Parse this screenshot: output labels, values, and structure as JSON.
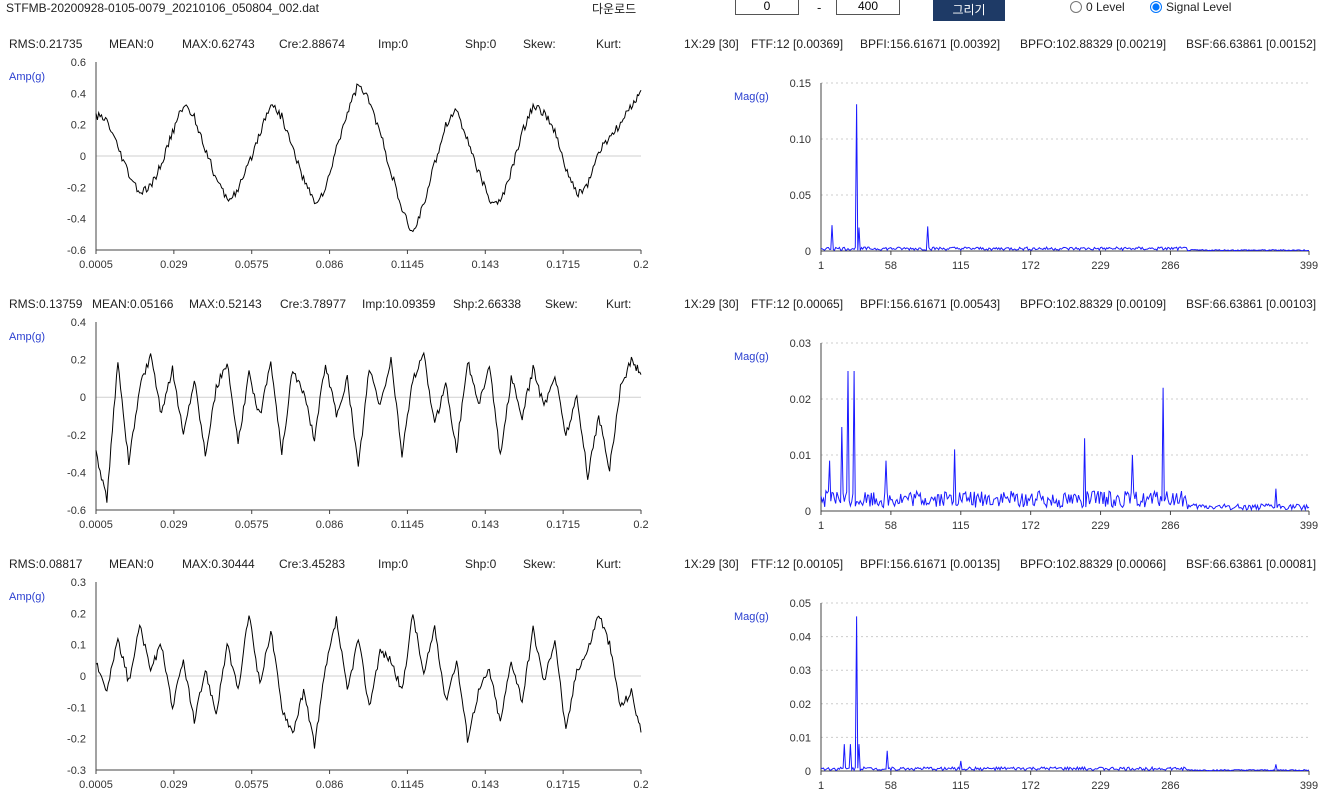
{
  "toolbar": {
    "filename": "STFMB-20200928-0105-0079_20210106_050804_002.dat",
    "download_label": "다운로드",
    "range_start": "0",
    "range_end": "400",
    "range_separator": "-",
    "draw_label": "그리기",
    "radio_zero_label": "0 Level",
    "radio_signal_label": "Signal Level",
    "selected_level": "signal"
  },
  "channels": [
    {
      "stats": {
        "rms": "RMS:0.21735",
        "mean": "MEAN:0",
        "max": "MAX:0.62743",
        "cre": "Cre:2.88674",
        "imp": "Imp:0",
        "shp": "Shp:0",
        "skew": "Skew:",
        "kurt": "Kurt:"
      },
      "freqs": {
        "x1": "1X:29 [30]",
        "ftf": "FTF:12 [0.00369]",
        "bpfi": "BPFI:156.61671 [0.00392]",
        "bpfo": "BPFO:102.88329 [0.00219]",
        "bsf": "BSF:66.63861 [0.00152]"
      }
    },
    {
      "stats": {
        "rms": "RMS:0.13759",
        "mean": "MEAN:0.05166",
        "max": "MAX:0.52143",
        "cre": "Cre:3.78977",
        "imp": "Imp:10.09359",
        "shp": "Shp:2.66338",
        "skew": "Skew:",
        "kurt": "Kurt:"
      },
      "freqs": {
        "x1": "1X:29 [30]",
        "ftf": "FTF:12 [0.00065]",
        "bpfi": "BPFI:156.61671 [0.00543]",
        "bpfo": "BPFO:102.88329 [0.00109]",
        "bsf": "BSF:66.63861 [0.00103]"
      }
    },
    {
      "stats": {
        "rms": "RMS:0.08817",
        "mean": "MEAN:0",
        "max": "MAX:0.30444",
        "cre": "Cre:3.45283",
        "imp": "Imp:0",
        "shp": "Shp:0",
        "skew": "Skew:",
        "kurt": "Kurt:"
      },
      "freqs": {
        "x1": "1X:29 [30]",
        "ftf": "FTF:12 [0.00105]",
        "bpfi": "BPFI:156.61671 [0.00135]",
        "bpfo": "BPFO:102.88329 [0.00066]",
        "bsf": "BSF:66.63861 [0.00081]"
      }
    }
  ],
  "chart_data": [
    {
      "type": "line",
      "kind": "waveform",
      "ylabel": "Amp(g)",
      "color": "#000000",
      "grid": "horizontal zero line",
      "xlim": [
        0.0005,
        0.2
      ],
      "ylim": [
        -0.6,
        0.6
      ],
      "xticks": [
        "0.0005",
        "0.029",
        "0.0575",
        "0.086",
        "0.1145",
        "0.143",
        "0.1715",
        "0.2"
      ],
      "yticks": [
        "0.6",
        "0.4",
        "0.2",
        "0",
        "-0.2",
        "-0.4",
        "-0.6"
      ],
      "series": [
        {
          "x": [
            0.0005,
            0.0045,
            0.0085,
            0.0125,
            0.0165,
            0.0205,
            0.0245,
            0.0285,
            0.0325,
            0.0365,
            0.0405,
            0.0445,
            0.0485,
            0.0525,
            0.0565,
            0.0605,
            0.0645,
            0.0685,
            0.0725,
            0.0765,
            0.0805,
            0.0845,
            0.0885,
            0.0925,
            0.0965,
            0.1005,
            0.1045,
            0.1085,
            0.1125,
            0.1165,
            0.1205,
            0.1245,
            0.1285,
            0.1325,
            0.1365,
            0.1405,
            0.1445,
            0.1485,
            0.1525,
            0.1565,
            0.1605,
            0.1645,
            0.1685,
            0.1725,
            0.1765,
            0.1805,
            0.1845,
            0.1885,
            0.1925,
            0.1965,
            0.2
          ],
          "y": [
            0.26,
            0.22,
            0.05,
            -0.12,
            -0.24,
            -0.2,
            -0.05,
            0.15,
            0.33,
            0.25,
            0.05,
            -0.15,
            -0.28,
            -0.22,
            -0.05,
            0.15,
            0.34,
            0.25,
            0.05,
            -0.15,
            -0.3,
            -0.22,
            0.05,
            0.28,
            0.46,
            0.35,
            0.15,
            -0.1,
            -0.35,
            -0.5,
            -0.3,
            -0.05,
            0.2,
            0.3,
            0.1,
            -0.1,
            -0.28,
            -0.3,
            -0.1,
            0.15,
            0.32,
            0.28,
            0.15,
            -0.08,
            -0.25,
            -0.18,
            0.02,
            0.12,
            0.2,
            0.32,
            0.42
          ]
        }
      ]
    },
    {
      "type": "line",
      "kind": "spectrum",
      "ylabel": "Mag(g)",
      "color": "#1a1aff",
      "grid": "horizontal dotted",
      "xlim": [
        1,
        399
      ],
      "ylim": [
        0,
        0.15
      ],
      "xticks": [
        "1",
        "58",
        "115",
        "172",
        "229",
        "286",
        "399"
      ],
      "yticks": [
        "0.15",
        "0.10",
        "0.05",
        "0"
      ],
      "peaks": [
        {
          "x": 30,
          "y": 0.131
        },
        {
          "x": 10,
          "y": 0.023
        },
        {
          "x": 32,
          "y": 0.021
        },
        {
          "x": 88,
          "y": 0.022
        }
      ],
      "noise_floor": 0.003
    },
    {
      "type": "line",
      "kind": "waveform",
      "ylabel": "Amp(g)",
      "color": "#000000",
      "grid": "horizontal zero line",
      "xlim": [
        0.0005,
        0.2
      ],
      "ylim": [
        -0.6,
        0.4
      ],
      "xticks": [
        "0.0005",
        "0.029",
        "0.0575",
        "0.086",
        "0.1145",
        "0.143",
        "0.1715",
        "0.2"
      ],
      "yticks": [
        "0.4",
        "0.2",
        "0",
        "-0.2",
        "-0.4",
        "-0.6"
      ],
      "series": [
        {
          "x": [
            0.0005,
            0.0045,
            0.0085,
            0.0125,
            0.0165,
            0.0205,
            0.0245,
            0.0285,
            0.0325,
            0.0365,
            0.0405,
            0.0445,
            0.0485,
            0.0525,
            0.0565,
            0.0605,
            0.0645,
            0.0685,
            0.0725,
            0.0765,
            0.0805,
            0.0845,
            0.0885,
            0.0925,
            0.0965,
            0.1005,
            0.1045,
            0.1085,
            0.1125,
            0.1165,
            0.1205,
            0.1245,
            0.1285,
            0.1325,
            0.1365,
            0.1405,
            0.1445,
            0.1485,
            0.1525,
            0.1565,
            0.1605,
            0.1645,
            0.1685,
            0.1725,
            0.1765,
            0.1805,
            0.1845,
            0.1885,
            0.1925,
            0.1965,
            0.2
          ],
          "y": [
            -0.3,
            -0.55,
            0.2,
            -0.35,
            0.05,
            0.22,
            -0.1,
            0.15,
            -0.2,
            0.1,
            -0.3,
            0.05,
            0.18,
            -0.25,
            0.12,
            -0.1,
            0.2,
            -0.3,
            0.15,
            0.02,
            -0.22,
            0.18,
            -0.1,
            0.1,
            -0.38,
            0.15,
            -0.05,
            0.2,
            -0.3,
            0.1,
            0.22,
            -0.15,
            0.08,
            -0.28,
            0.2,
            -0.05,
            0.18,
            -0.32,
            0.1,
            -0.1,
            0.15,
            -0.05,
            0.12,
            -0.2,
            0.0,
            -0.42,
            -0.1,
            -0.38,
            0.05,
            0.2,
            0.12
          ]
        }
      ]
    },
    {
      "type": "line",
      "kind": "spectrum",
      "ylabel": "Mag(g)",
      "color": "#1a1aff",
      "grid": "horizontal dotted",
      "xlim": [
        1,
        399
      ],
      "ylim": [
        0,
        0.03
      ],
      "xticks": [
        "1",
        "58",
        "115",
        "172",
        "229",
        "286",
        "399"
      ],
      "yticks": [
        "0.03",
        "0.02",
        "0.01",
        "0"
      ],
      "peaks": [
        {
          "x": 23,
          "y": 0.025
        },
        {
          "x": 28,
          "y": 0.025
        },
        {
          "x": 18,
          "y": 0.015
        },
        {
          "x": 8,
          "y": 0.009
        },
        {
          "x": 54,
          "y": 0.009
        },
        {
          "x": 110,
          "y": 0.011
        },
        {
          "x": 216,
          "y": 0.013
        },
        {
          "x": 255,
          "y": 0.01
        },
        {
          "x": 280,
          "y": 0.022
        },
        {
          "x": 372,
          "y": 0.004
        }
      ],
      "noise_floor": 0.003
    },
    {
      "type": "line",
      "kind": "waveform",
      "ylabel": "Amp(g)",
      "color": "#000000",
      "grid": "horizontal zero line",
      "xlim": [
        0.0005,
        0.2
      ],
      "ylim": [
        -0.3,
        0.3
      ],
      "xticks": [
        "0.0005",
        "0.029",
        "0.0575",
        "0.086",
        "0.1145",
        "0.143",
        "0.1715",
        "0.2"
      ],
      "yticks": [
        "0.3",
        "0.2",
        "0.1",
        "0",
        "-0.1",
        "-0.2",
        "-0.3"
      ],
      "series": [
        {
          "x": [
            0.0005,
            0.0045,
            0.0085,
            0.0125,
            0.0165,
            0.0205,
            0.0245,
            0.0285,
            0.0325,
            0.0365,
            0.0405,
            0.0445,
            0.0485,
            0.0525,
            0.0565,
            0.0605,
            0.0645,
            0.0685,
            0.0725,
            0.0765,
            0.0805,
            0.0845,
            0.0885,
            0.0925,
            0.0965,
            0.1005,
            0.1045,
            0.1085,
            0.1125,
            0.1165,
            0.1205,
            0.1245,
            0.1285,
            0.1325,
            0.1365,
            0.1405,
            0.1445,
            0.1485,
            0.1525,
            0.1565,
            0.1605,
            0.1645,
            0.1685,
            0.1725,
            0.1765,
            0.1805,
            0.1845,
            0.1885,
            0.1925,
            0.1965,
            0.2
          ],
          "y": [
            0.05,
            -0.05,
            0.12,
            -0.02,
            0.16,
            0.02,
            0.1,
            -0.1,
            0.05,
            -0.15,
            0.02,
            -0.12,
            0.1,
            -0.05,
            0.2,
            -0.03,
            0.15,
            -0.1,
            -0.18,
            -0.05,
            -0.22,
            0.02,
            0.18,
            -0.05,
            0.12,
            -0.1,
            0.08,
            0.05,
            -0.05,
            0.2,
            0.0,
            0.16,
            -0.08,
            0.05,
            -0.2,
            -0.05,
            0.02,
            -0.15,
            0.05,
            -0.08,
            0.15,
            -0.02,
            0.12,
            -0.18,
            0.02,
            0.08,
            0.2,
            0.1,
            -0.1,
            -0.05,
            -0.18
          ]
        }
      ]
    },
    {
      "type": "line",
      "kind": "spectrum",
      "ylabel": "Mag(g)",
      "color": "#1a1aff",
      "grid": "horizontal dotted",
      "xlim": [
        1,
        399
      ],
      "ylim": [
        0,
        0.05
      ],
      "xticks": [
        "1",
        "58",
        "115",
        "172",
        "229",
        "286",
        "399"
      ],
      "yticks": [
        "0.05",
        "0.04",
        "0.03",
        "0.02",
        "0.01",
        "0"
      ],
      "peaks": [
        {
          "x": 30,
          "y": 0.046
        },
        {
          "x": 20,
          "y": 0.008
        },
        {
          "x": 25,
          "y": 0.008
        },
        {
          "x": 32,
          "y": 0.008
        },
        {
          "x": 55,
          "y": 0.006
        },
        {
          "x": 115,
          "y": 0.003
        },
        {
          "x": 372,
          "y": 0.002
        }
      ],
      "noise_floor": 0.001
    }
  ]
}
